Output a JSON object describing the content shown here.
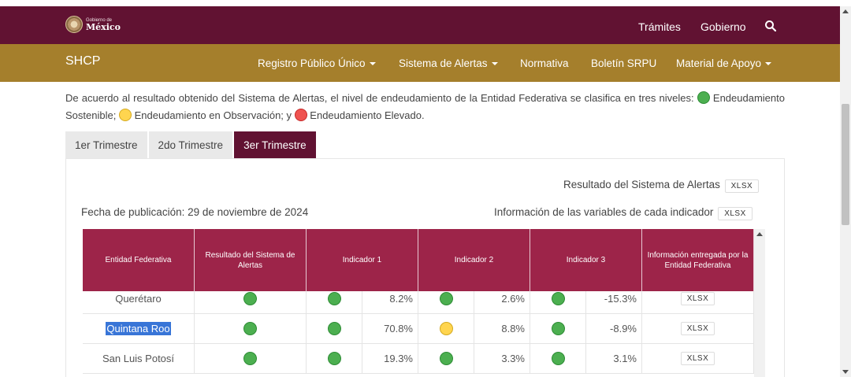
{
  "header": {
    "logo_small": "Gobierno de",
    "logo_big": "México",
    "nav": [
      "Trámites",
      "Gobierno"
    ]
  },
  "subheader": {
    "brand": "SHCP",
    "nav": [
      {
        "label": "Registro Público Único",
        "dropdown": true
      },
      {
        "label": "Sistema de Alertas",
        "dropdown": true
      },
      {
        "label": "Normativa",
        "dropdown": false
      },
      {
        "label": "Boletín SRPU",
        "dropdown": false
      },
      {
        "label": "Material de Apoyo",
        "dropdown": true
      }
    ]
  },
  "description": {
    "intro": "De acuerdo al resultado obtenido del Sistema de Alertas, el nivel de endeudamiento de la Entidad Federativa se clasifica en tres niveles:",
    "level1": "Endeudamiento Sostenible;",
    "level2": "Endeudamiento en Observación; y",
    "level3": "Endeudamiento Elevado."
  },
  "tabs": [
    {
      "label": "1er Trimestre",
      "active": false
    },
    {
      "label": "2do Trimestre",
      "active": false
    },
    {
      "label": "3er Trimestre",
      "active": true
    }
  ],
  "panel": {
    "resultado_label": "Resultado del Sistema de Alertas",
    "fecha_label": "Fecha de publicación: 29 de noviembre de 2024",
    "variables_label": "Información de las variables de cada indicador",
    "xlsx": "XLSX"
  },
  "table": {
    "headers": [
      "Entidad Federativa",
      "Resultado del Sistema de Alertas",
      "Indicador 1",
      "Indicador 2",
      "Indicador 3",
      "Información entregada por la Entidad Federativa"
    ],
    "rows": [
      {
        "entidad": "Querétaro",
        "resultado": "green",
        "ind1_color": "green",
        "ind1": "8.2%",
        "ind2_color": "green",
        "ind2": "2.6%",
        "ind3_color": "green",
        "ind3": "-15.3%",
        "info": "XLSX",
        "selected": false
      },
      {
        "entidad": "Quintana Roo",
        "resultado": "green",
        "ind1_color": "green",
        "ind1": "70.8%",
        "ind2_color": "yellow",
        "ind2": "8.8%",
        "ind3_color": "green",
        "ind3": "-8.9%",
        "info": "XLSX",
        "selected": true
      },
      {
        "entidad": "San Luis Potosí",
        "resultado": "green",
        "ind1_color": "green",
        "ind1": "19.3%",
        "ind2_color": "green",
        "ind2": "3.3%",
        "ind3_color": "green",
        "ind3": "3.1%",
        "info": "XLSX",
        "selected": false
      }
    ]
  },
  "colors": {
    "topbar": "#611232",
    "subbar": "#a57f2c",
    "table_header": "#9d2449",
    "green": "#4caf50",
    "yellow": "#ffd54f",
    "red": "#ef5350",
    "selection": "#3875d7"
  }
}
